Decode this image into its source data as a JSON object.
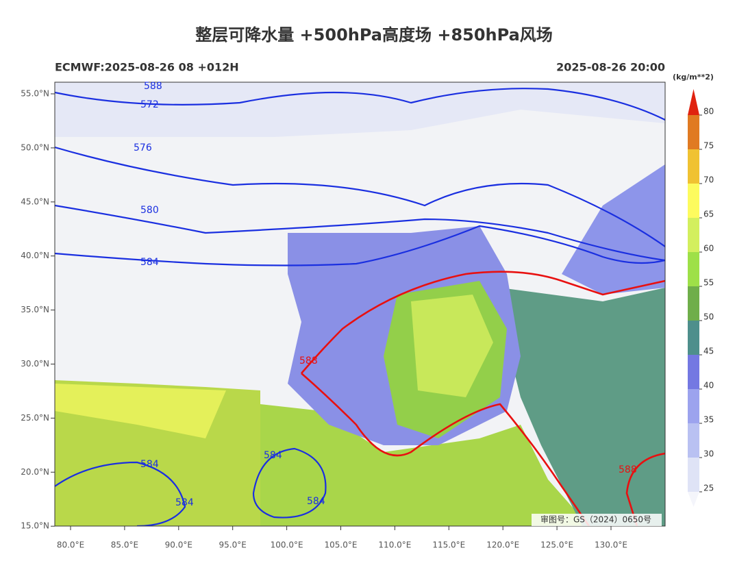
{
  "header": {
    "title": "整层可降水量 +500hPa高度场 +850hPa风场",
    "model_run": "ECMWF:2025-08-26 08 +012H",
    "valid_time": "2025-08-26 20:00"
  },
  "lat_labels": [
    "55.0°N",
    "50.0°N",
    "45.0°N",
    "40.0°N",
    "35.0°N",
    "30.0°N",
    "25.0°N",
    "20.0°N",
    "15.0°N"
  ],
  "lon_labels": [
    "80.0°E",
    "85.0°E",
    "90.0°E",
    "95.0°E",
    "100.0°E",
    "105.0°E",
    "110.0°E",
    "115.0°E",
    "120.0°E",
    "125.0°E",
    "130.0°E"
  ],
  "colorbar": {
    "unit": "(kg/m**2)",
    "levels": [
      25,
      30,
      35,
      40,
      45,
      50,
      55,
      60,
      65,
      70,
      75,
      80
    ],
    "colors": [
      "#dfe3f6",
      "#b9c1f2",
      "#9ca3ee",
      "#7478e2",
      "#4e8f8c",
      "#6fae4a",
      "#9ee048",
      "#d3ef5e",
      "#fdfb5e",
      "#f0c232",
      "#e07a22"
    ],
    "extend_color": "#e0220f"
  },
  "contours": {
    "blue": [
      "588",
      "572",
      "576",
      "580",
      "584",
      "584",
      "584",
      "584",
      "584"
    ],
    "red": [
      "588",
      "588"
    ]
  },
  "approval": "审图号：GS（2024）0650号"
}
